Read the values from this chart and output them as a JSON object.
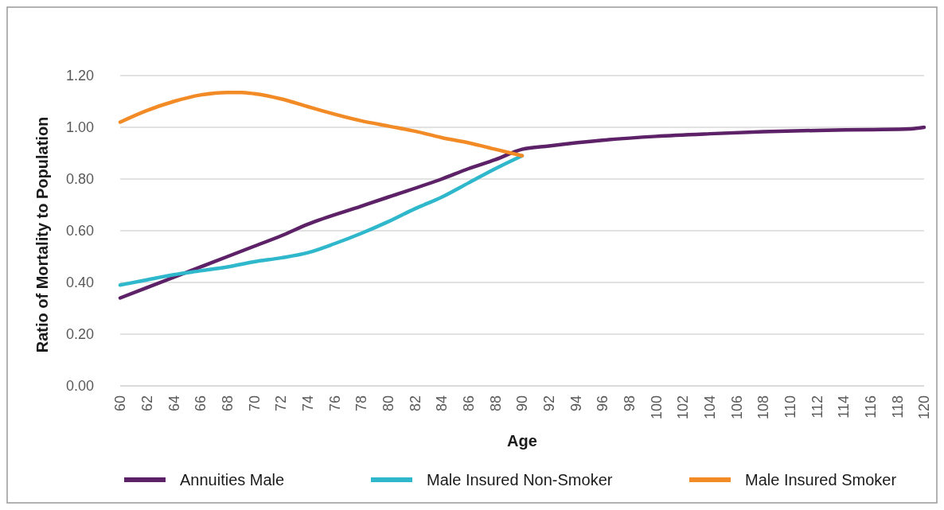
{
  "chart_data": {
    "type": "line",
    "xlabel": "Age",
    "ylabel": "Ratio of Mortality to Population",
    "xlim": [
      60,
      120
    ],
    "xticks": [
      60,
      62,
      64,
      66,
      68,
      70,
      72,
      74,
      76,
      78,
      80,
      82,
      84,
      86,
      88,
      90,
      92,
      94,
      96,
      98,
      100,
      102,
      104,
      106,
      108,
      110,
      112,
      114,
      116,
      118,
      120
    ],
    "ylim": [
      0,
      1.2
    ],
    "yticks": [
      {
        "value": 0,
        "label": "0.00"
      },
      {
        "value": 0.2,
        "label": "0.20"
      },
      {
        "value": 0.4,
        "label": "0.40"
      },
      {
        "value": 0.6,
        "label": "0.60"
      },
      {
        "value": 0.8,
        "label": "0.80"
      },
      {
        "value": 1,
        "label": "1.00"
      },
      {
        "value": 1.2,
        "label": "1.20"
      }
    ],
    "grid": "y",
    "legend": "bottom",
    "marker": "none",
    "line_style": "solid",
    "series": [
      {
        "name": "Annuities Male",
        "color": "#5c2166",
        "x": [
          60,
          64,
          68,
          70,
          72,
          74,
          78,
          80,
          84,
          86,
          88,
          90,
          92,
          96,
          100,
          104,
          108,
          112,
          116,
          119,
          120
        ],
        "values": [
          0.34,
          0.42,
          0.5,
          0.54,
          0.58,
          0.625,
          0.695,
          0.73,
          0.8,
          0.84,
          0.875,
          0.915,
          0.928,
          0.95,
          0.965,
          0.975,
          0.983,
          0.988,
          0.991,
          0.994,
          1.0
        ]
      },
      {
        "name": "Male Insured Non-Smoker",
        "color": "#2fb8cc",
        "x": [
          60,
          62,
          64,
          66,
          68,
          70,
          72,
          74,
          76,
          78,
          80,
          82,
          84,
          86,
          88,
          90
        ],
        "values": [
          0.39,
          0.41,
          0.43,
          0.445,
          0.46,
          0.48,
          0.495,
          0.515,
          0.55,
          0.59,
          0.635,
          0.685,
          0.73,
          0.785,
          0.84,
          0.89
        ]
      },
      {
        "name": "Male Insured Smoker",
        "color": "#f28a26",
        "x": [
          60,
          62,
          64,
          66,
          68,
          69,
          70,
          72,
          74,
          75,
          78,
          80,
          82,
          84,
          86,
          88,
          90
        ],
        "values": [
          1.02,
          1.065,
          1.1,
          1.125,
          1.135,
          1.135,
          1.13,
          1.11,
          1.08,
          1.065,
          1.025,
          1.005,
          0.985,
          0.96,
          0.94,
          0.915,
          0.89
        ]
      }
    ]
  }
}
